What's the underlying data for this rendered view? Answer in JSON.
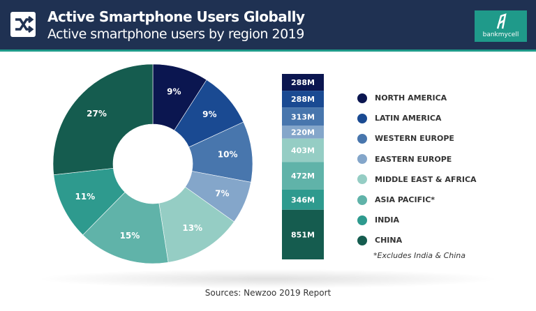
{
  "header": {
    "title": "Active Smartphone Users Globally",
    "subtitle": "Active smartphone users by region 2019",
    "logo_text": "bankmycell",
    "icon": "shuffle-icon"
  },
  "chart_data": {
    "type": "pie",
    "donut": true,
    "title": "Active Smartphone Users Globally",
    "subtitle": "Active smartphone users by region 2019",
    "categories": [
      "NORTH AMERICA",
      "LATIN AMERICA",
      "WESTERN EUROPE",
      "EASTERN EUROPE",
      "MIDDLE EAST & AFRICA",
      "ASIA PACIFIC*",
      "INDIA",
      "CHINA"
    ],
    "values": [
      288,
      288,
      313,
      220,
      403,
      472,
      346,
      851
    ],
    "value_labels": [
      "288M",
      "288M",
      "313M",
      "220M",
      "403M",
      "472M",
      "346M",
      "851M"
    ],
    "percent_labels": [
      "9%",
      "9%",
      "10%",
      "7%",
      "13%",
      "15%",
      "11%",
      "27%"
    ],
    "colors": [
      "#0b1650",
      "#1a4a92",
      "#4876ad",
      "#84a6ca",
      "#95cdc4",
      "#60b3a9",
      "#2e9a8e",
      "#155c4f"
    ],
    "legend_placement": "right",
    "footnote": "*Excludes India & China"
  },
  "footer": {
    "source": "Sources: Newzoo 2019 Report"
  }
}
